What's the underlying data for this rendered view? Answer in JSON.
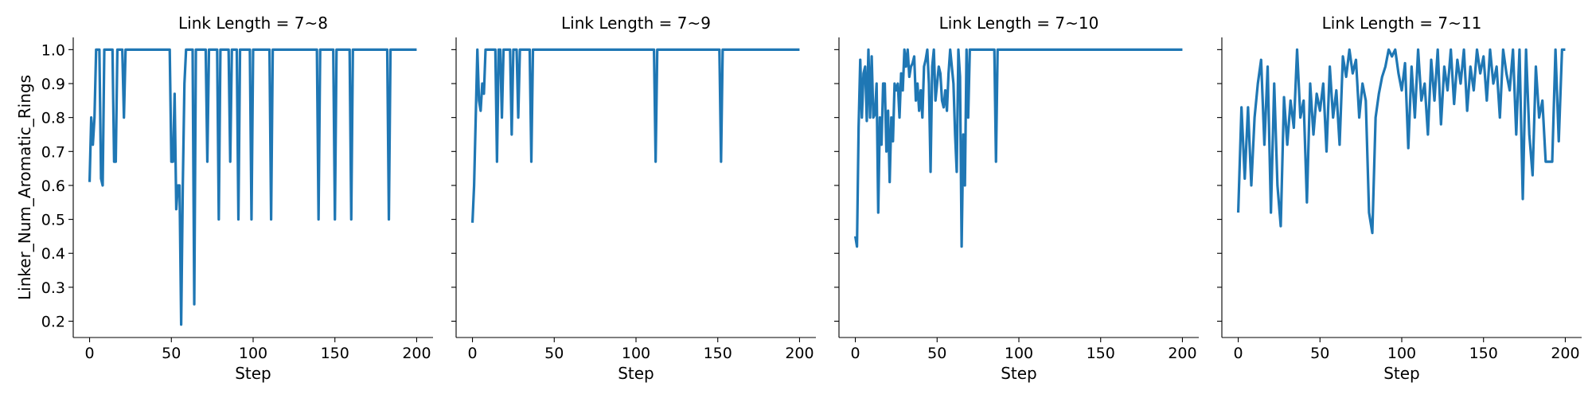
{
  "chart_data": [
    {
      "type": "line",
      "title": "Link Length = 7~8",
      "x_label": "Step",
      "y_label": "Linker_Num_Aromatic_Rings",
      "color": "#1f77b4",
      "xlim": [
        -10,
        210
      ],
      "ylim": [
        0.152,
        1.036
      ],
      "xticks": [
        0,
        50,
        100,
        150,
        200
      ],
      "yticks": [
        0.2,
        0.3,
        0.4,
        0.5,
        0.6,
        0.7,
        0.8,
        0.9,
        {
          "value": 1,
          "label": "1.0"
        }
      ],
      "x": [
        0,
        1,
        2,
        3,
        4,
        6,
        7,
        8,
        9,
        14,
        15,
        16,
        17,
        20,
        21,
        22,
        49,
        50,
        51,
        52,
        53,
        54,
        55,
        56,
        57,
        58,
        59,
        63,
        64,
        65,
        71,
        72,
        73,
        78,
        79,
        80,
        85,
        86,
        87,
        90,
        91,
        92,
        98,
        99,
        100,
        110,
        111,
        112,
        139,
        140,
        141,
        149,
        150,
        151,
        159,
        160,
        161,
        182,
        183,
        184,
        200
      ],
      "values": [
        0.61,
        0.8,
        0.72,
        0.8,
        1.0,
        1.0,
        0.62,
        0.6,
        1.0,
        1.0,
        0.67,
        0.67,
        1.0,
        1.0,
        0.8,
        1.0,
        1.0,
        0.67,
        0.67,
        0.87,
        0.53,
        0.6,
        0.6,
        0.19,
        0.6,
        0.9,
        1.0,
        1.0,
        0.25,
        1.0,
        1.0,
        0.67,
        1.0,
        1.0,
        0.5,
        1.0,
        1.0,
        0.67,
        1.0,
        1.0,
        0.5,
        1.0,
        1.0,
        0.5,
        1.0,
        1.0,
        0.5,
        1.0,
        1.0,
        0.5,
        1.0,
        1.0,
        0.5,
        1.0,
        1.0,
        0.5,
        1.0,
        1.0,
        0.5,
        1.0,
        1.0
      ]
    },
    {
      "type": "line",
      "title": "Link Length = 7~9",
      "x_label": "Step",
      "color": "#1f77b4",
      "xlim": [
        -10,
        210
      ],
      "ylim": [
        0.152,
        1.036
      ],
      "xticks": [
        0,
        50,
        100,
        150,
        200
      ],
      "yticks": [
        0.2,
        0.3,
        0.4,
        0.5,
        0.6,
        0.7,
        0.8,
        0.9,
        1
      ],
      "x": [
        0,
        1,
        2,
        3,
        4,
        5,
        6,
        7,
        8,
        14,
        15,
        16,
        17,
        18,
        19,
        23,
        24,
        25,
        27,
        28,
        29,
        35,
        36,
        37,
        111,
        112,
        113,
        151,
        152,
        153,
        200
      ],
      "values": [
        0.49,
        0.6,
        0.8,
        1.0,
        0.85,
        0.82,
        0.9,
        0.87,
        1.0,
        1.0,
        0.67,
        1.0,
        1.0,
        0.8,
        1.0,
        1.0,
        0.75,
        1.0,
        1.0,
        0.8,
        1.0,
        1.0,
        0.67,
        1.0,
        1.0,
        0.67,
        1.0,
        1.0,
        0.67,
        1.0,
        1.0
      ]
    },
    {
      "type": "line",
      "title": "Link Length = 7~10",
      "x_label": "Step",
      "color": "#1f77b4",
      "xlim": [
        -10,
        210
      ],
      "ylim": [
        0.152,
        1.036
      ],
      "xticks": [
        0,
        50,
        100,
        150,
        200
      ],
      "yticks": [
        0.2,
        0.3,
        0.4,
        0.5,
        0.6,
        0.7,
        0.8,
        0.9,
        1
      ],
      "x": [
        0,
        1,
        2,
        3,
        4,
        5,
        6,
        7,
        8,
        9,
        10,
        11,
        12,
        13,
        14,
        15,
        16,
        17,
        18,
        19,
        20,
        21,
        22,
        23,
        24,
        25,
        26,
        27,
        28,
        29,
        30,
        31,
        32,
        33,
        34,
        35,
        36,
        37,
        38,
        39,
        40,
        41,
        42,
        43,
        44,
        45,
        46,
        47,
        48,
        49,
        50,
        51,
        52,
        53,
        54,
        55,
        56,
        57,
        58,
        59,
        60,
        61,
        62,
        63,
        64,
        65,
        66,
        67,
        68,
        69,
        70,
        85,
        86,
        87,
        200
      ],
      "values": [
        0.45,
        0.42,
        0.77,
        0.97,
        0.8,
        0.93,
        0.95,
        0.79,
        1.0,
        0.8,
        0.98,
        0.8,
        0.81,
        0.9,
        0.52,
        0.8,
        0.72,
        0.9,
        0.9,
        0.7,
        0.82,
        0.61,
        0.8,
        0.73,
        0.9,
        0.88,
        0.9,
        0.8,
        0.93,
        0.88,
        1.0,
        0.95,
        1.0,
        0.92,
        0.95,
        0.96,
        0.98,
        0.85,
        0.9,
        0.82,
        0.88,
        0.8,
        0.95,
        0.97,
        1.0,
        0.9,
        0.64,
        0.95,
        1.0,
        0.85,
        0.9,
        0.95,
        0.93,
        0.85,
        0.83,
        0.88,
        0.82,
        0.93,
        1.0,
        0.95,
        0.9,
        0.75,
        0.64,
        1.0,
        0.92,
        0.42,
        0.75,
        0.6,
        1.0,
        0.8,
        1.0,
        1.0,
        0.67,
        1.0,
        1.0
      ]
    },
    {
      "type": "line",
      "title": "Link Length = 7~11",
      "x_label": "Step",
      "color": "#1f77b4",
      "xlim": [
        -10,
        210
      ],
      "ylim": [
        0.152,
        1.036
      ],
      "xticks": [
        0,
        50,
        100,
        150,
        200
      ],
      "yticks": [
        0.2,
        0.3,
        0.4,
        0.5,
        0.6,
        0.7,
        0.8,
        0.9,
        1
      ],
      "x": [
        0,
        2,
        4,
        6,
        8,
        10,
        12,
        14,
        16,
        18,
        20,
        22,
        24,
        26,
        28,
        30,
        32,
        34,
        36,
        38,
        40,
        42,
        44,
        46,
        48,
        50,
        52,
        54,
        56,
        58,
        60,
        62,
        64,
        66,
        68,
        70,
        72,
        74,
        76,
        78,
        80,
        82,
        84,
        86,
        88,
        90,
        92,
        94,
        96,
        98,
        100,
        102,
        104,
        106,
        108,
        110,
        112,
        114,
        116,
        118,
        120,
        122,
        124,
        126,
        128,
        130,
        132,
        134,
        136,
        138,
        140,
        142,
        144,
        146,
        148,
        150,
        152,
        154,
        156,
        158,
        160,
        162,
        164,
        166,
        168,
        170,
        172,
        174,
        176,
        178,
        180,
        182,
        184,
        186,
        188,
        190,
        192,
        194,
        196,
        198,
        200
      ],
      "values": [
        0.52,
        0.83,
        0.62,
        0.83,
        0.6,
        0.8,
        0.9,
        0.97,
        0.72,
        0.95,
        0.52,
        0.9,
        0.6,
        0.48,
        0.86,
        0.72,
        0.85,
        0.77,
        1.0,
        0.8,
        0.85,
        0.55,
        0.9,
        0.75,
        0.87,
        0.82,
        0.9,
        0.7,
        0.95,
        0.8,
        0.88,
        0.72,
        0.98,
        0.92,
        1.0,
        0.93,
        0.97,
        0.8,
        0.9,
        0.85,
        0.52,
        0.46,
        0.8,
        0.87,
        0.92,
        0.95,
        1.0,
        0.98,
        1.0,
        0.93,
        0.88,
        0.96,
        0.71,
        0.95,
        0.8,
        1.0,
        0.85,
        0.9,
        0.75,
        0.97,
        0.85,
        1.0,
        0.78,
        0.95,
        0.88,
        1.0,
        0.84,
        0.97,
        0.9,
        1.0,
        0.82,
        0.95,
        0.88,
        1.0,
        0.93,
        0.98,
        0.85,
        1.0,
        0.9,
        0.95,
        0.8,
        1.0,
        0.93,
        0.88,
        1.0,
        0.75,
        1.0,
        0.56,
        1.0,
        0.75,
        0.63,
        0.95,
        0.8,
        0.85,
        0.67,
        0.67,
        0.67,
        1.0,
        0.73,
        1.0,
        1.0
      ]
    }
  ]
}
